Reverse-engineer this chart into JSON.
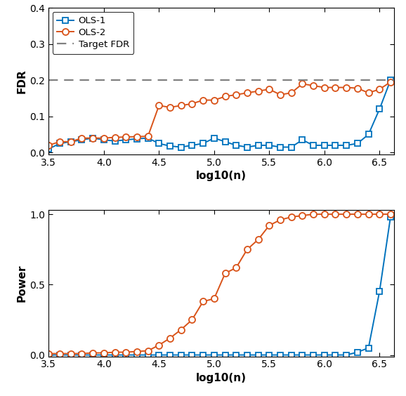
{
  "x": [
    3.5,
    3.6,
    3.7,
    3.8,
    3.9,
    4.0,
    4.1,
    4.2,
    4.3,
    4.4,
    4.5,
    4.6,
    4.7,
    4.8,
    4.9,
    5.0,
    5.1,
    5.2,
    5.3,
    5.4,
    5.5,
    5.6,
    5.7,
    5.8,
    5.9,
    6.0,
    6.1,
    6.2,
    6.3,
    6.4,
    6.5,
    6.6
  ],
  "fdr_ols1": [
    0.01,
    0.025,
    0.03,
    0.035,
    0.04,
    0.035,
    0.032,
    0.035,
    0.038,
    0.04,
    0.025,
    0.018,
    0.015,
    0.02,
    0.025,
    0.04,
    0.03,
    0.02,
    0.015,
    0.02,
    0.02,
    0.015,
    0.015,
    0.035,
    0.02,
    0.02,
    0.02,
    0.02,
    0.025,
    0.05,
    0.12,
    0.2
  ],
  "fdr_ols2": [
    0.02,
    0.03,
    0.03,
    0.04,
    0.04,
    0.04,
    0.042,
    0.043,
    0.044,
    0.045,
    0.13,
    0.125,
    0.13,
    0.135,
    0.145,
    0.145,
    0.155,
    0.16,
    0.165,
    0.17,
    0.175,
    0.16,
    0.165,
    0.19,
    0.185,
    0.18,
    0.18,
    0.18,
    0.178,
    0.165,
    0.175,
    0.195
  ],
  "power_ols1": [
    0.0,
    0.0,
    0.0,
    0.0,
    0.0,
    0.0,
    0.0,
    0.0,
    0.0,
    0.0,
    0.0,
    0.0,
    0.0,
    0.0,
    0.0,
    0.0,
    0.0,
    0.0,
    0.0,
    0.0,
    0.0,
    0.0,
    0.0,
    0.0,
    0.0,
    0.0,
    0.0,
    0.0,
    0.02,
    0.05,
    0.45,
    0.98
  ],
  "power_ols2": [
    0.01,
    0.01,
    0.01,
    0.01,
    0.015,
    0.015,
    0.02,
    0.02,
    0.025,
    0.03,
    0.07,
    0.12,
    0.18,
    0.25,
    0.38,
    0.4,
    0.58,
    0.62,
    0.75,
    0.82,
    0.92,
    0.96,
    0.98,
    0.99,
    1.0,
    1.0,
    1.0,
    1.0,
    1.0,
    1.0,
    1.0,
    1.0
  ],
  "target_fdr": 0.2,
  "color_ols1": "#0072BD",
  "color_ols2": "#D95319",
  "color_target": "#808080",
  "xlim": [
    3.5,
    6.63
  ],
  "fdr_ylim": [
    -0.005,
    0.4
  ],
  "power_ylim": [
    -0.01,
    1.03
  ],
  "xlabel": "log10(n)",
  "fdr_ylabel": "FDR",
  "power_ylabel": "Power",
  "fdr_yticks": [
    0.0,
    0.1,
    0.2,
    0.3,
    0.4
  ],
  "power_yticks": [
    0.0,
    0.5,
    1.0
  ],
  "xticks": [
    3.5,
    4.0,
    4.5,
    5.0,
    5.5,
    6.0,
    6.5
  ]
}
